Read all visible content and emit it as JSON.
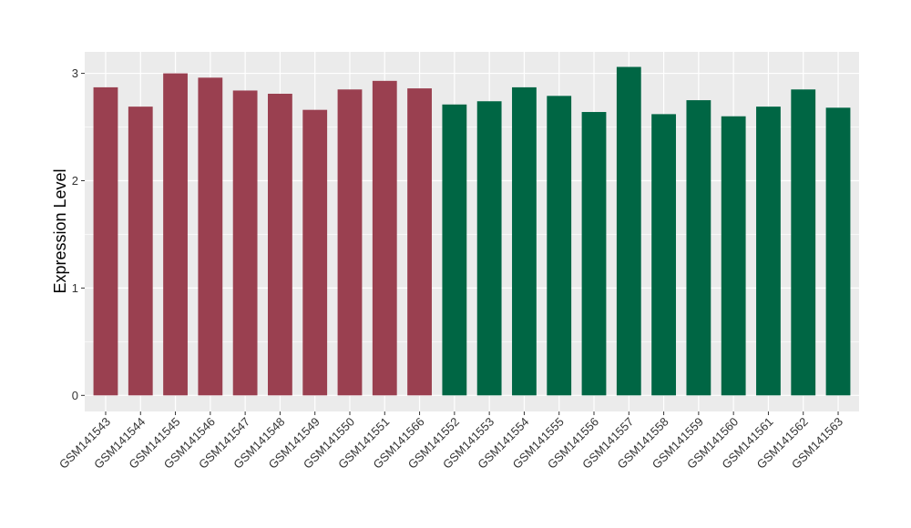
{
  "chart_data": {
    "type": "bar",
    "ylabel": "Expression Level",
    "xlabel": "",
    "ylim": [
      -0.15,
      3.2
    ],
    "yticks": [
      0,
      1,
      2,
      3
    ],
    "grid": true,
    "panel_background": "#EBEBEB",
    "grid_color": "#FFFFFF",
    "categories": [
      "GSM141543",
      "GSM141544",
      "GSM141545",
      "GSM141546",
      "GSM141547",
      "GSM141548",
      "GSM141549",
      "GSM141550",
      "GSM141551",
      "GSM141566",
      "GSM141552",
      "GSM141553",
      "GSM141554",
      "GSM141555",
      "GSM141556",
      "GSM141557",
      "GSM141558",
      "GSM141559",
      "GSM141560",
      "GSM141561",
      "GSM141562",
      "GSM141563"
    ],
    "values": [
      2.87,
      2.69,
      3.0,
      2.96,
      2.84,
      2.81,
      2.66,
      2.85,
      2.93,
      2.86,
      2.71,
      2.74,
      2.87,
      2.79,
      2.64,
      3.06,
      2.62,
      2.75,
      2.6,
      2.69,
      2.85,
      2.68
    ],
    "groups": [
      1,
      1,
      1,
      1,
      1,
      1,
      1,
      1,
      1,
      1,
      2,
      2,
      2,
      2,
      2,
      2,
      2,
      2,
      2,
      2,
      2,
      2
    ],
    "group_colors": {
      "1": "#9A4050",
      "2": "#006644"
    }
  }
}
